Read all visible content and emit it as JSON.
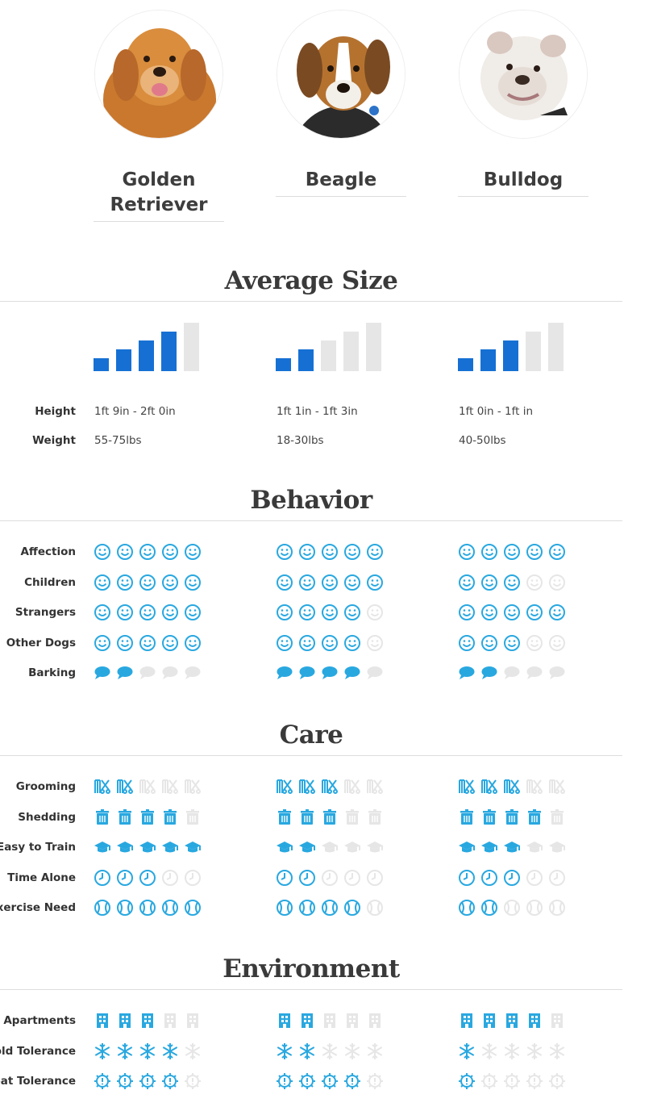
{
  "colors": {
    "accent": "#29a8e0",
    "bar_active": "#1670d4",
    "inactive": "#e6e6e6"
  },
  "breeds": [
    {
      "name": "Golden Retriever",
      "photo": "golden-retriever-photo",
      "size_level": 4,
      "height": "1ft 9in - 2ft 0in",
      "weight": "55-75lbs"
    },
    {
      "name": "Beagle",
      "photo": "beagle-photo",
      "size_level": 2,
      "height": "1ft 1in - 1ft 3in",
      "weight": "18-30lbs"
    },
    {
      "name": "Bulldog",
      "photo": "bulldog-photo",
      "size_level": 3,
      "height": "1ft 0in - 1ft in",
      "weight": "40-50lbs"
    }
  ],
  "sections": {
    "size": "Average Size",
    "behavior": "Behavior",
    "care": "Care",
    "environment": "Environment"
  },
  "size_labels": {
    "height": "Height",
    "weight": "Weight"
  },
  "max_rating": 5,
  "rating_rows": [
    {
      "section": "behavior",
      "label": "Affection",
      "icon": "smiley-icon",
      "ratings": [
        5,
        5,
        5
      ]
    },
    {
      "section": "behavior",
      "label": "Children",
      "icon": "smiley-icon",
      "ratings": [
        5,
        5,
        3
      ]
    },
    {
      "section": "behavior",
      "label": "Strangers",
      "icon": "smiley-icon",
      "ratings": [
        5,
        4,
        5
      ]
    },
    {
      "section": "behavior",
      "label": "Other Dogs",
      "icon": "smiley-icon",
      "ratings": [
        5,
        4,
        3
      ]
    },
    {
      "section": "behavior",
      "label": "Barking",
      "icon": "speech-bubble-icon",
      "ratings": [
        2,
        4,
        2
      ]
    },
    {
      "section": "care",
      "label": "Grooming",
      "icon": "comb-scissors-icon",
      "ratings": [
        2,
        3,
        3
      ]
    },
    {
      "section": "care",
      "label": "Shedding",
      "icon": "trash-can-icon",
      "ratings": [
        4,
        3,
        4
      ]
    },
    {
      "section": "care",
      "label": "Easy to Train",
      "icon": "graduation-cap-icon",
      "ratings": [
        5,
        2,
        3
      ]
    },
    {
      "section": "care",
      "label": "Time Alone",
      "icon": "clock-icon",
      "ratings": [
        3,
        2,
        3
      ]
    },
    {
      "section": "care",
      "label": "Exercise Need",
      "icon": "ball-icon",
      "ratings": [
        5,
        4,
        2
      ]
    },
    {
      "section": "environment",
      "label": "Apartments",
      "icon": "building-icon",
      "ratings": [
        3,
        2,
        4
      ]
    },
    {
      "section": "environment",
      "label": "Cold Tolerance",
      "icon": "snowflake-icon",
      "ratings": [
        4,
        2,
        1
      ]
    },
    {
      "section": "environment",
      "label": "Heat Tolerance",
      "icon": "sun-icon",
      "ratings": [
        4,
        4,
        1
      ]
    }
  ]
}
